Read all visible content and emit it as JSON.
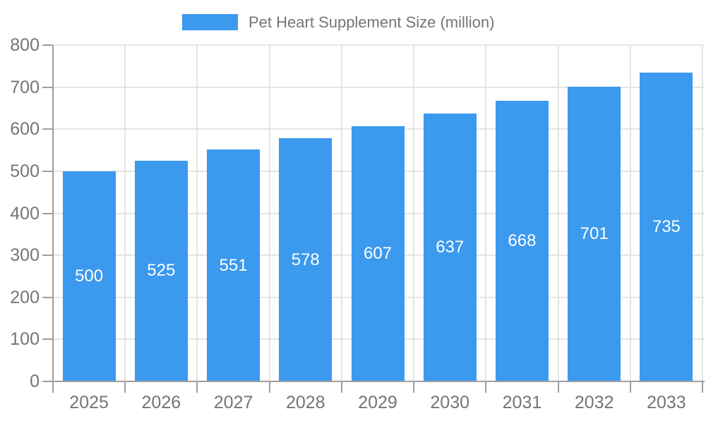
{
  "legend": {
    "label": "Pet Heart Supplement Size (million)"
  },
  "colors": {
    "bar_fill": "#3b99ee",
    "bar_value_text": "#ffffff",
    "axis_text": "#757575",
    "grid_line": "#e5e5e5",
    "axis_line": "#9e9e9e",
    "background": "#ffffff"
  },
  "chart_data": {
    "type": "bar",
    "title": "",
    "series_name": "Pet Heart Supplement Size (million)",
    "categories": [
      "2025",
      "2026",
      "2027",
      "2028",
      "2029",
      "2030",
      "2031",
      "2032",
      "2033"
    ],
    "values": [
      500,
      525,
      551,
      578,
      607,
      637,
      668,
      701,
      735
    ],
    "xlabel": "",
    "ylabel": "",
    "ylim": [
      0,
      800
    ],
    "ytick_step": 100,
    "yticks": [
      0,
      100,
      200,
      300,
      400,
      500,
      600,
      700,
      800
    ],
    "grid": true,
    "legend_position": "top-center",
    "value_label_position": "inside-center"
  }
}
